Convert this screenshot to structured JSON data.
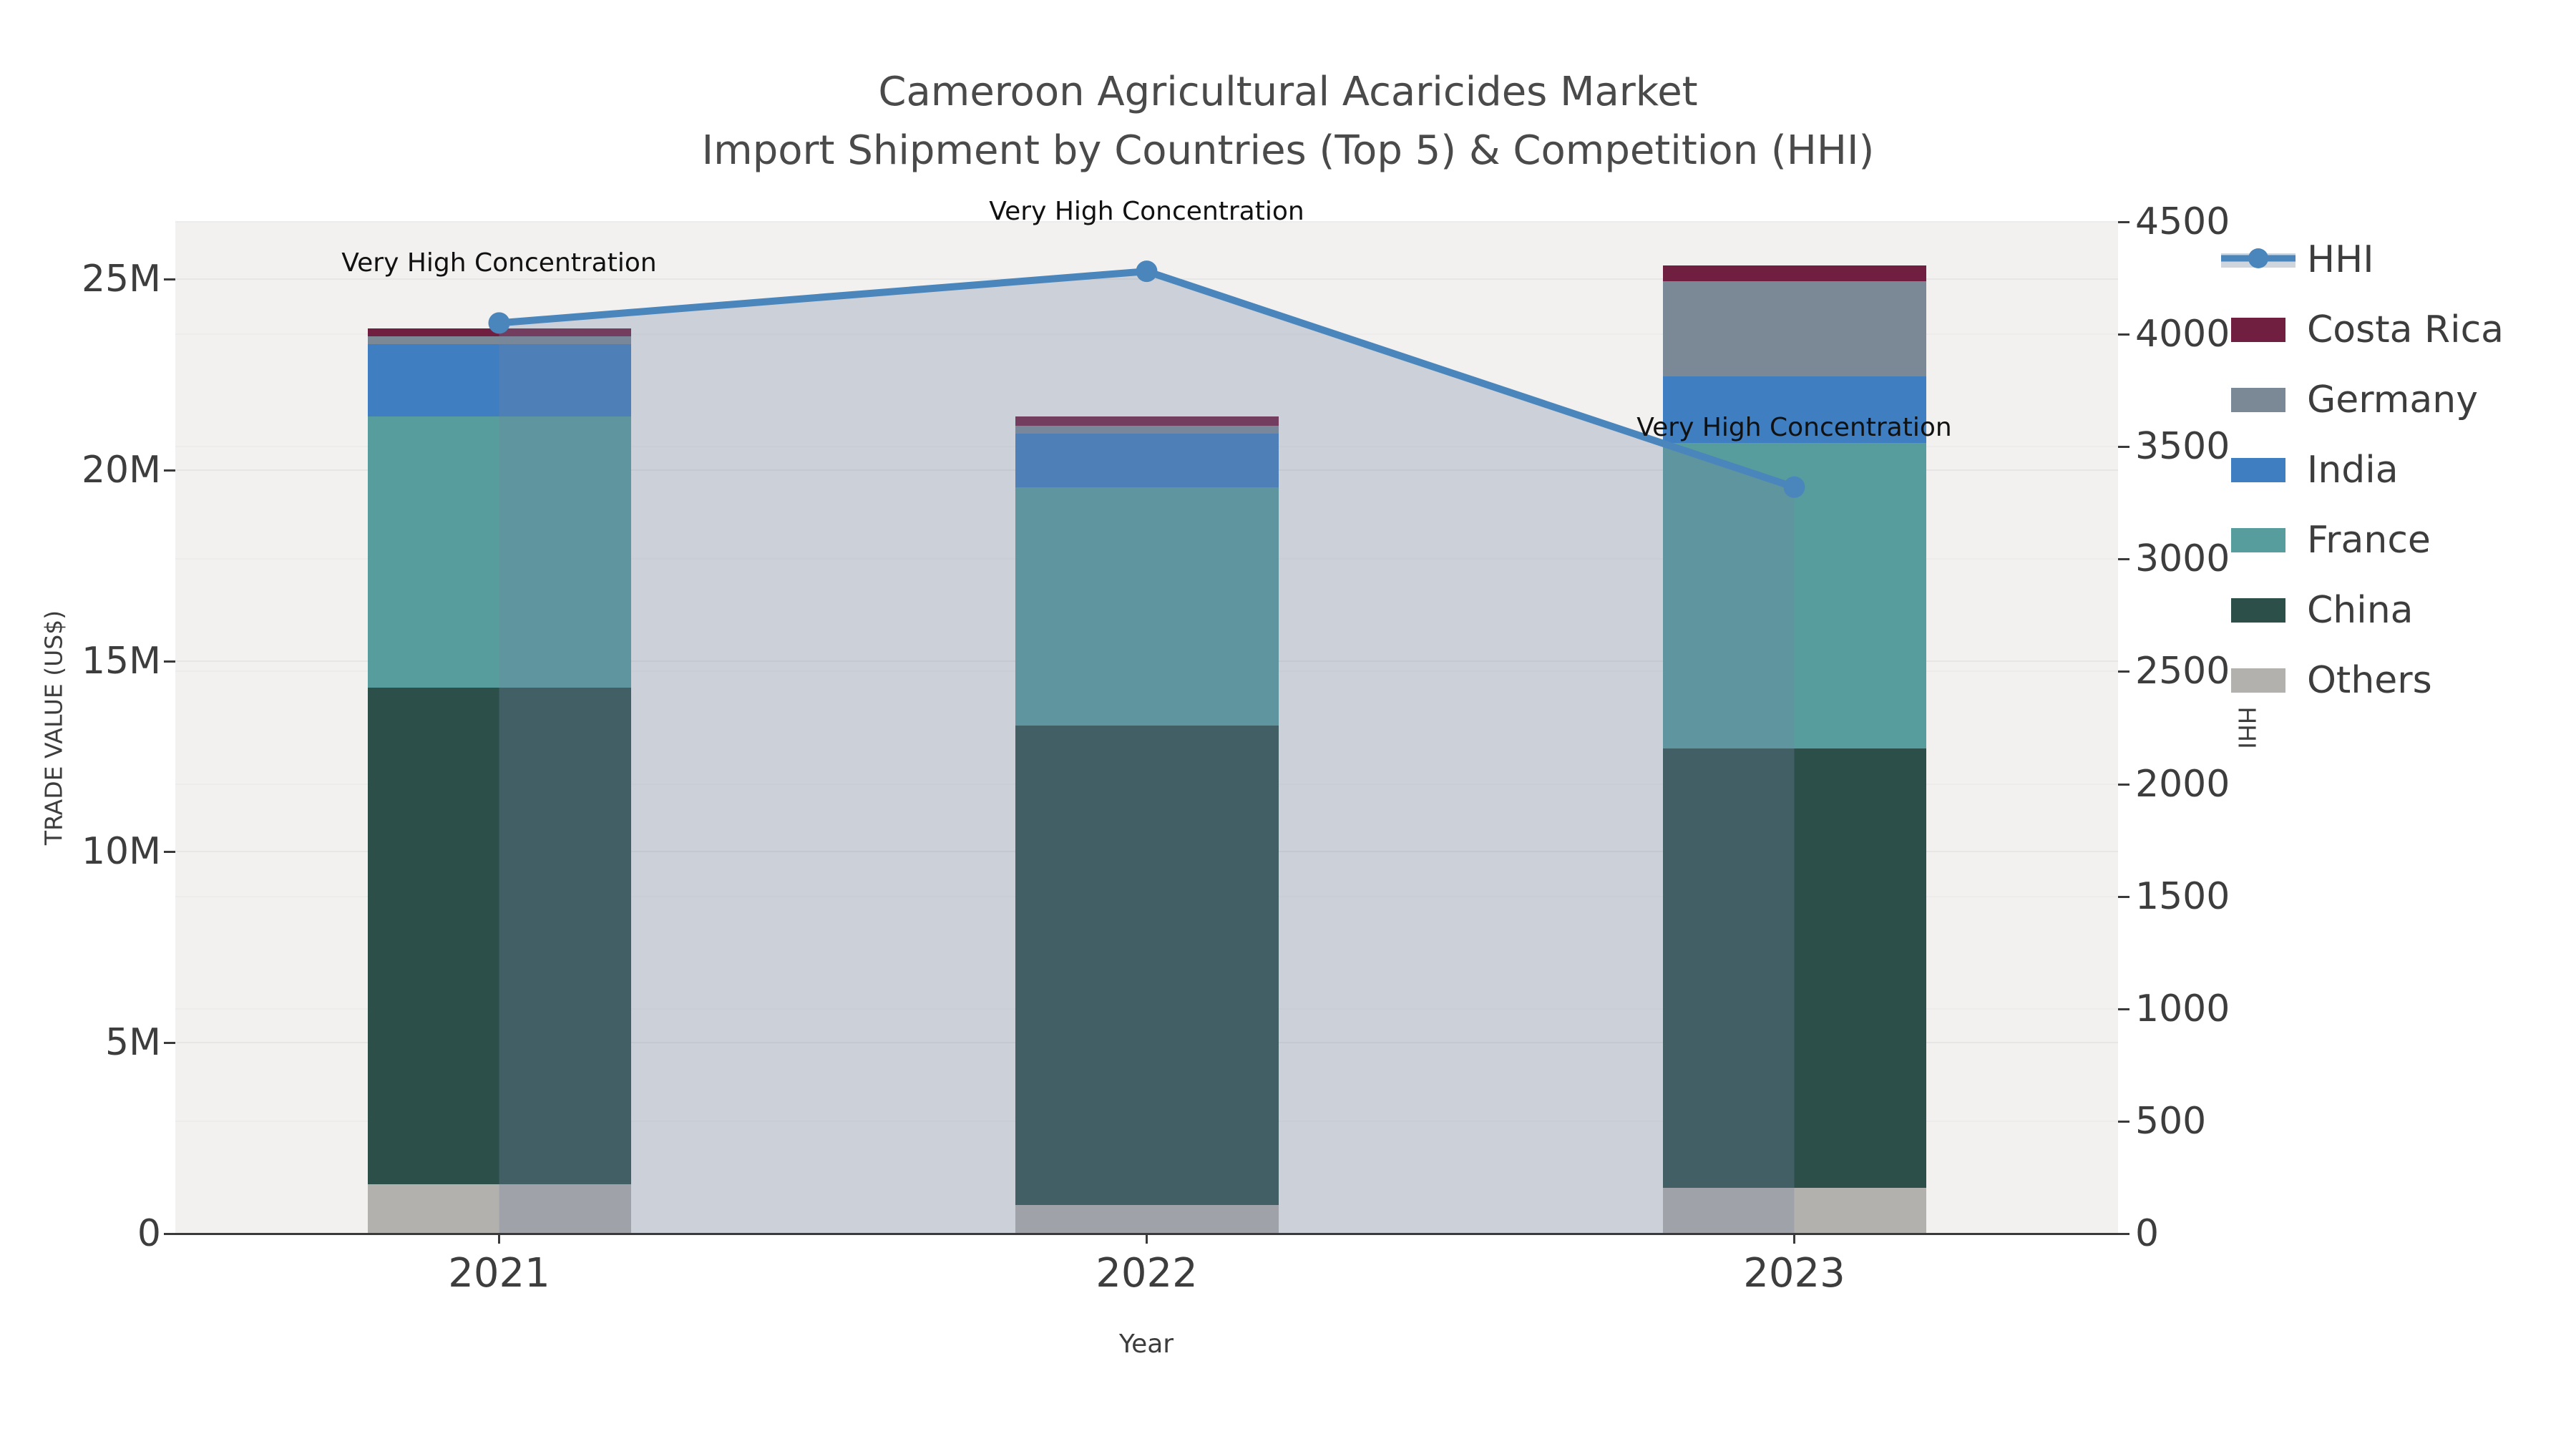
{
  "title": {
    "line1": "Cameroon Agricultural Acaricides Market",
    "line2": "Import Shipment by Countries (Top 5) & Competition (HHI)"
  },
  "axis_titles": {
    "left": "TRADE VALUE (US$)",
    "right": "HHI",
    "x": "Year"
  },
  "colors": {
    "hhi_line": "#4a86bb",
    "hhi_area": "rgba(115,132,162,0.30)",
    "plot_bg": "#f2f1f0",
    "spine": "#3a3a3a",
    "text": "#3d3d3d",
    "annotation": "#111111"
  },
  "chart_data": {
    "type": "bar",
    "subtype": "stacked bars (trade value, left axis) + HHI line with shaded area (right axis)",
    "title": "Cameroon Agricultural Acaricides Market — Import Shipment by Countries (Top 5) & Competition (HHI)",
    "categories": [
      "2021",
      "2022",
      "2023"
    ],
    "bar_unit": "US$ millions",
    "series": [
      {
        "name": "Others",
        "color": "#b2b1ad",
        "values": [
          1.3,
          0.75,
          1.2
        ]
      },
      {
        "name": "China",
        "color": "#2c4f4a",
        "values": [
          13.0,
          12.55,
          11.5
        ]
      },
      {
        "name": "France",
        "color": "#579d9e",
        "values": [
          7.1,
          6.25,
          8.0
        ]
      },
      {
        "name": "India",
        "color": "#3e7ec1",
        "values": [
          1.9,
          1.4,
          1.75
        ]
      },
      {
        "name": "Germany",
        "color": "#7b8997",
        "values": [
          0.2,
          0.2,
          2.5
        ]
      },
      {
        "name": "Costa Rica",
        "color": "#711f41",
        "values": [
          0.2,
          0.25,
          0.4
        ]
      }
    ],
    "bar_totals_M": [
      23.7,
      21.4,
      25.35
    ],
    "line_series": {
      "name": "HHI",
      "values": [
        4050,
        4280,
        3320
      ],
      "axis": "right"
    },
    "left_axis": {
      "title": "TRADE VALUE (US$)",
      "tick_labels": [
        "0",
        "5M",
        "10M",
        "15M",
        "20M",
        "25M"
      ],
      "tick_values_M": [
        0,
        5,
        10,
        15,
        20,
        25
      ],
      "range_M": [
        0,
        26.5
      ],
      "grid": true
    },
    "right_axis": {
      "title": "HHI",
      "tick_values": [
        0,
        500,
        1000,
        1500,
        2000,
        2500,
        3000,
        3500,
        4000,
        4500
      ],
      "range": [
        0,
        4500
      ],
      "grid": true
    },
    "x_axis": {
      "title": "Year"
    },
    "annotations": [
      {
        "category": "2021",
        "text": "Very High Concentration"
      },
      {
        "category": "2022",
        "text": "Very High Concentration"
      },
      {
        "category": "2023",
        "text": "Very High Concentration"
      }
    ],
    "legend": {
      "position": "right",
      "entries": [
        {
          "name": "HHI",
          "type": "line",
          "color": "#4a86bb"
        },
        {
          "name": "Costa Rica",
          "type": "patch",
          "color": "#711f41"
        },
        {
          "name": "Germany",
          "type": "patch",
          "color": "#7b8997"
        },
        {
          "name": "India",
          "type": "patch",
          "color": "#3e7ec1"
        },
        {
          "name": "France",
          "type": "patch",
          "color": "#579d9e"
        },
        {
          "name": "China",
          "type": "patch",
          "color": "#2c4f4a"
        },
        {
          "name": "Others",
          "type": "patch",
          "color": "#b2b1ad"
        }
      ]
    }
  }
}
